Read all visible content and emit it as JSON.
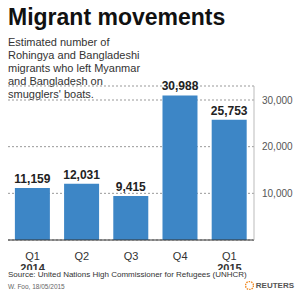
{
  "chart_data": {
    "type": "bar",
    "title": "Migrant movements",
    "subtitle": "Estimated number of Rohingya and Bangladeshi migrants who left Myanmar and Bangladesh on smugglers' boats.",
    "categories": [
      "Q1 2014",
      "Q2",
      "Q3",
      "Q4",
      "Q1 2015"
    ],
    "values": [
      11159,
      12031,
      9415,
      30988,
      25753
    ],
    "value_labels": [
      "11,159",
      "12,031",
      "9,415",
      "30,988",
      "25,753"
    ],
    "data_labels": true,
    "color": "#3d86c6",
    "ylim": [
      0,
      33000
    ],
    "yticks": [
      {
        "value": 10000,
        "label": "10,000"
      },
      {
        "value": 20000,
        "label": "20,000"
      },
      {
        "value": 30000,
        "label": "30,000"
      }
    ],
    "grid": true,
    "annotations": [
      "Source: United Nations High Commissioner for Refugees (UNHCR)",
      "W. Foo, 18/05/2015",
      "REUTERS"
    ]
  }
}
